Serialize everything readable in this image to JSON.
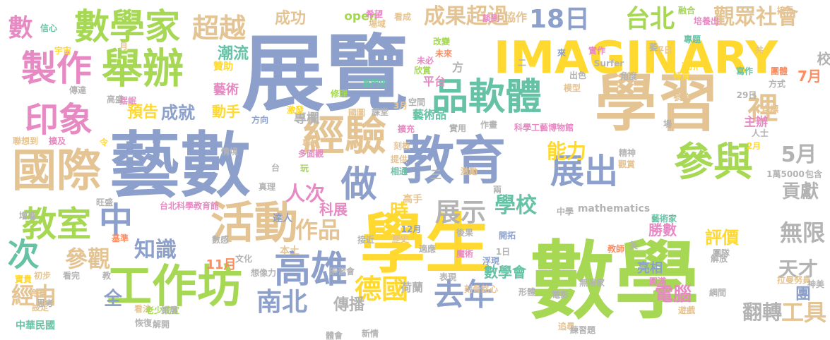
{
  "words": [
    {
      "text": "數學",
      "color": "#a6d854",
      "orient": "h"
    },
    {
      "text": "展覽",
      "color": "#8da0cb",
      "orient": "h"
    },
    {
      "text": "藝數",
      "color": "#8da0cb",
      "orient": "h"
    },
    {
      "text": "學生",
      "color": "#ffd92f",
      "orient": "h"
    },
    {
      "text": "學習",
      "color": "#e5c494",
      "orient": "h"
    },
    {
      "text": "IMAGINARY",
      "color": "#ffd92f",
      "orient": "h"
    },
    {
      "text": "教育",
      "color": "#8da0cb",
      "orient": "h"
    },
    {
      "text": "國際",
      "color": "#e5c494",
      "orient": "h"
    },
    {
      "text": "工作坊",
      "color": "#a6d854",
      "orient": "h"
    },
    {
      "text": "活動",
      "color": "#e5c494",
      "orient": "h"
    },
    {
      "text": "經驗",
      "color": "#e5c494",
      "orient": "h"
    },
    {
      "text": "舉辦",
      "color": "#a6d854",
      "orient": "h"
    },
    {
      "text": "數學家",
      "color": "#a6d854",
      "orient": "h"
    },
    {
      "text": "製作",
      "color": "#e78ac3",
      "orient": "h"
    },
    {
      "text": "印象",
      "color": "#e78ac3",
      "orient": "h"
    },
    {
      "text": "參與",
      "color": "#a6d854",
      "orient": "h"
    },
    {
      "text": "高雄",
      "color": "#8da0cb",
      "orient": "h"
    },
    {
      "text": "教室",
      "color": "#a6d854",
      "orient": "h"
    },
    {
      "text": "品軟體",
      "color": "#66c2a5",
      "orient": "h"
    },
    {
      "text": "展出",
      "color": "#8da0cb",
      "orient": "h"
    },
    {
      "text": "做",
      "color": "#8da0cb",
      "orient": "h"
    },
    {
      "text": "中",
      "color": "#8da0cb",
      "orient": "h"
    },
    {
      "text": "次",
      "color": "#66c2a5",
      "orient": "h"
    },
    {
      "text": "裡",
      "color": "#e5c494",
      "orient": "h"
    },
    {
      "text": "超越",
      "color": "#e5c494",
      "orient": "h"
    },
    {
      "text": "數",
      "color": "#e78ac3",
      "orient": "h"
    },
    {
      "text": "觀眾社會",
      "color": "#e5c494",
      "orient": "h"
    },
    {
      "text": "18日",
      "color": "#8da0cb",
      "orient": "h"
    },
    {
      "text": "台北",
      "color": "#a6d854",
      "orient": "h"
    },
    {
      "text": "成果超過",
      "color": "#e5c494",
      "orient": "h"
    },
    {
      "text": "去年",
      "color": "#8da0cb",
      "orient": "h"
    },
    {
      "text": "德國",
      "color": "#ffd92f",
      "orient": "h"
    },
    {
      "text": "南北",
      "color": "#8da0cb",
      "orient": "h"
    },
    {
      "text": "展示",
      "color": "#b3b3b3",
      "orient": "h"
    },
    {
      "text": "作品",
      "color": "#e5c494",
      "orient": "h"
    },
    {
      "text": "學校",
      "color": "#66c2a5",
      "orient": "h"
    },
    {
      "text": "能力",
      "color": "#ffd92f",
      "orient": "h"
    },
    {
      "text": "時",
      "color": "#ffd92f",
      "orient": "h"
    },
    {
      "text": "經由",
      "color": "#e5c494",
      "orient": "h"
    },
    {
      "text": "全",
      "color": "#8da0cb",
      "orient": "h"
    },
    {
      "text": "參觀",
      "color": "#e5c494",
      "orient": "h"
    },
    {
      "text": "知識",
      "color": "#8da0cb",
      "orient": "h"
    },
    {
      "text": "人次",
      "color": "#e78ac3",
      "orient": "h"
    },
    {
      "text": "5月",
      "color": "#b3b3b3",
      "orient": "h"
    },
    {
      "text": "無限",
      "color": "#b3b3b3",
      "orient": "h"
    },
    {
      "text": "天才",
      "color": "#b3b3b3",
      "orient": "h"
    },
    {
      "text": "團",
      "color": "#8da0cb",
      "orient": "h"
    },
    {
      "text": "工具",
      "color": "#e5c494",
      "orient": "h"
    },
    {
      "text": "翻轉",
      "color": "#b3b3b3",
      "orient": "h"
    },
    {
      "text": "電腦",
      "color": "#e78ac3",
      "orient": "h"
    },
    {
      "text": "貢獻",
      "color": "#b3b3b3",
      "orient": "h"
    },
    {
      "text": "評價",
      "color": "#ffd92f",
      "orient": "h"
    },
    {
      "text": "傳播",
      "color": "#b3b3b3",
      "orient": "h"
    },
    {
      "text": "成功",
      "color": "#e5c494",
      "orient": "h"
    },
    {
      "text": "潮流",
      "color": "#66c2a5",
      "orient": "h"
    },
    {
      "text": "動手",
      "color": "#ffd92f",
      "orient": "h"
    },
    {
      "text": "預告",
      "color": "#ffd92f",
      "orient": "h"
    },
    {
      "text": "成就",
      "color": "#8da0cb",
      "orient": "h"
    },
    {
      "text": "科展",
      "color": "#e78ac3",
      "orient": "h"
    },
    {
      "text": "7月",
      "color": "#fc8d62",
      "orient": "h"
    },
    {
      "text": "校",
      "color": "#b3b3b3",
      "orient": "h"
    },
    {
      "text": "數學會",
      "color": "#66c2a5",
      "orient": "h"
    },
    {
      "text": "11月",
      "color": "#fc8d62",
      "orient": "h"
    },
    {
      "text": "勝數",
      "color": "#e78ac3",
      "orient": "h"
    },
    {
      "text": "藝術品",
      "color": "#66c2a5",
      "orient": "h"
    },
    {
      "text": "專欄",
      "color": "#b3b3b3",
      "orient": "h"
    },
    {
      "text": "藝術",
      "color": "#e78ac3",
      "orient": "h"
    },
    {
      "text": "協作",
      "color": "#e5c494",
      "orient": "h"
    },
    {
      "text": "open",
      "color": "#a6d854",
      "orient": "h"
    },
    {
      "text": "mathematics",
      "color": "#b3b3b3",
      "orient": "h"
    },
    {
      "text": "中華民國",
      "color": "#66c2a5",
      "orient": "h"
    },
    {
      "text": "荷蘭",
      "color": "#b3b3b3",
      "orient": "h"
    },
    {
      "text": "亮相",
      "color": "#8da0cb",
      "orient": "h"
    },
    {
      "text": "主辦",
      "color": "#e78ac3",
      "orient": "h"
    },
    {
      "text": "平台",
      "color": "#e78ac3",
      "orient": "h"
    },
    {
      "text": "高手",
      "color": "#e5c494",
      "orient": "h"
    },
    {
      "text": "達人",
      "color": "#8da0cb",
      "orient": "h"
    },
    {
      "text": "本土",
      "color": "#e5c494",
      "orient": "h"
    },
    {
      "text": "贊助",
      "color": "#ffd92f",
      "orient": "h"
    },
    {
      "text": "三",
      "color": "#b3b3b3",
      "orient": "h"
    },
    {
      "text": "方",
      "color": "#b3b3b3",
      "orient": "h"
    },
    {
      "text": "台",
      "color": "#b3b3b3",
      "orient": "h"
    },
    {
      "text": "玩",
      "color": "#a6d854",
      "orient": "h"
    },
    {
      "text": "科學工藝博物館",
      "color": "#e78ac3",
      "orient": "h"
    },
    {
      "text": "台北科學教育館",
      "color": "#e78ac3",
      "orient": "h"
    },
    {
      "text": "希望",
      "color": "#e78ac3",
      "orient": "h"
    },
    {
      "text": "場域",
      "color": "#e5c494",
      "orient": "h"
    },
    {
      "text": "看成",
      "color": "#e5c494",
      "orient": "h"
    },
    {
      "text": "談到",
      "color": "#e78ac3",
      "orient": "h"
    },
    {
      "text": "融合",
      "color": "#a6d854",
      "orient": "h"
    },
    {
      "text": "培養出",
      "color": "#e78ac3",
      "orient": "h"
    },
    {
      "text": "專題",
      "color": "#66c2a5",
      "orient": "h"
    },
    {
      "text": "信心",
      "color": "#66c2a5",
      "orient": "h"
    },
    {
      "text": "宇宙",
      "color": "#ffd92f",
      "orient": "h"
    },
    {
      "text": "月",
      "color": "#e5c494",
      "orient": "h"
    },
    {
      "text": "改變",
      "color": "#a6d854",
      "orient": "h"
    },
    {
      "text": "未來",
      "color": "#fc8d62",
      "orient": "h"
    },
    {
      "text": "來",
      "color": "#8da0cb",
      "orient": "h"
    },
    {
      "text": "未必",
      "color": "#e78ac3",
      "orient": "h"
    },
    {
      "text": "欣賞",
      "color": "#a6d854",
      "orient": "h"
    },
    {
      "text": "平日",
      "color": "#e5c494",
      "orient": "h"
    },
    {
      "text": "理所",
      "color": "#ffd92f",
      "orient": "h"
    },
    {
      "text": "實作",
      "color": "#e78ac3",
      "orient": "h"
    },
    {
      "text": "Surfer",
      "color": "#b3b3b3",
      "orient": "h"
    },
    {
      "text": "出色",
      "color": "#b3b3b3",
      "orient": "h"
    },
    {
      "text": "模型",
      "color": "#e5c494",
      "orient": "h"
    },
    {
      "text": "角度",
      "color": "#b3b3b3",
      "orient": "h"
    },
    {
      "text": "特質",
      "color": "#ffd92f",
      "orient": "h"
    },
    {
      "text": "寫作",
      "color": "#66c2a5",
      "orient": "h"
    },
    {
      "text": "團體",
      "color": "#fc8d62",
      "orient": "h"
    },
    {
      "text": "方式",
      "color": "#b3b3b3",
      "orient": "h"
    },
    {
      "text": "29日",
      "color": "#b3b3b3",
      "orient": "h"
    },
    {
      "text": "自標",
      "color": "#e5c494",
      "orient": "h"
    },
    {
      "text": "參訪",
      "color": "#e5c494",
      "orient": "h"
    },
    {
      "text": "傳達",
      "color": "#b3b3b3",
      "orient": "h"
    },
    {
      "text": "高盛",
      "color": "#b3b3b3",
      "orient": "h"
    },
    {
      "text": "揺岷",
      "color": "#e78ac3",
      "orient": "h"
    },
    {
      "text": "富門史",
      "color": "#66c2a5",
      "orient": "h"
    },
    {
      "text": "修理",
      "color": "#a6d854",
      "orient": "h"
    },
    {
      "text": "3月",
      "color": "#e5c494",
      "orient": "h"
    },
    {
      "text": "空間",
      "color": "#b3b3b3",
      "orient": "h"
    },
    {
      "text": "國圖",
      "color": "#e5c494",
      "orient": "h"
    },
    {
      "text": "課堂",
      "color": "#b3b3b3",
      "orient": "h"
    },
    {
      "text": "擴充",
      "color": "#e78ac3",
      "orient": "h"
    },
    {
      "text": "激發",
      "color": "#ffd92f",
      "orient": "h"
    },
    {
      "text": "實用",
      "color": "#b3b3b3",
      "orient": "h"
    },
    {
      "text": "作畫",
      "color": "#b3b3b3",
      "orient": "h"
    },
    {
      "text": "場",
      "color": "#b3b3b3",
      "orient": "h"
    },
    {
      "text": "人士",
      "color": "#b3b3b3",
      "orient": "h"
    },
    {
      "text": "2月",
      "color": "#ffd92f",
      "orient": "h"
    },
    {
      "text": "聯想到",
      "color": "#e5c494",
      "orient": "h"
    },
    {
      "text": "擴及",
      "color": "#e78ac3",
      "orient": "h"
    },
    {
      "text": "令",
      "color": "#ffd92f",
      "orient": "h"
    },
    {
      "text": "情境",
      "color": "#b3b3b3",
      "orient": "h"
    },
    {
      "text": "方向",
      "color": "#8da0cb",
      "orient": "h"
    },
    {
      "text": "專技",
      "color": "#e5c494",
      "orient": "h"
    },
    {
      "text": "多面觀",
      "color": "#e78ac3",
      "orient": "h"
    },
    {
      "text": "刻板",
      "color": "#e5c494",
      "orient": "h"
    },
    {
      "text": "相通",
      "color": "#66c2a5",
      "orient": "h"
    },
    {
      "text": "提供",
      "color": "#e5c494",
      "orient": "h"
    },
    {
      "text": "激勵",
      "color": "#e5c494",
      "orient": "h"
    },
    {
      "text": "精神",
      "color": "#b3b3b3",
      "orient": "h"
    },
    {
      "text": "觀賞",
      "color": "#e5c494",
      "orient": "h"
    },
    {
      "text": "1萬5000",
      "color": "#b3b3b3",
      "orient": "h"
    },
    {
      "text": "包含",
      "color": "#b3b3b3",
      "orient": "h"
    },
    {
      "text": "真理",
      "color": "#b3b3b3",
      "orient": "h"
    },
    {
      "text": "接近",
      "color": "#b3b3b3",
      "orient": "h"
    },
    {
      "text": "兩",
      "color": "#b3b3b3",
      "orient": "h"
    },
    {
      "text": "旺盛",
      "color": "#b3b3b3",
      "orient": "h"
    },
    {
      "text": "增進",
      "color": "#b3b3b3",
      "orient": "h"
    },
    {
      "text": "基準",
      "color": "#fc8d62",
      "orient": "h"
    },
    {
      "text": "數感",
      "color": "#b3b3b3",
      "orient": "h"
    },
    {
      "text": "12月",
      "color": "#8da0cb",
      "orient": "h"
    },
    {
      "text": "歷史",
      "color": "#e5c494",
      "orient": "h"
    },
    {
      "text": "後果",
      "color": "#b3b3b3",
      "orient": "h"
    },
    {
      "text": "適應",
      "color": "#b3b3b3",
      "orient": "h"
    },
    {
      "text": "中學",
      "color": "#b3b3b3",
      "orient": "h"
    },
    {
      "text": "藝術家",
      "color": "#66c2a5",
      "orient": "h"
    },
    {
      "text": "團隊",
      "color": "#b3b3b3",
      "orient": "h"
    },
    {
      "text": "解放",
      "color": "#b3b3b3",
      "orient": "h"
    },
    {
      "text": "美",
      "color": "#b3b3b3",
      "orient": "h"
    },
    {
      "text": "教師",
      "color": "#fc8d62",
      "orient": "h"
    },
    {
      "text": "文化",
      "color": "#b3b3b3",
      "orient": "h"
    },
    {
      "text": "想像力",
      "color": "#b3b3b3",
      "orient": "h"
    },
    {
      "text": "魔術",
      "color": "#e78ac3",
      "orient": "h"
    },
    {
      "text": "開拓",
      "color": "#8da0cb",
      "orient": "h"
    },
    {
      "text": "1日",
      "color": "#b3b3b3",
      "orient": "h"
    },
    {
      "text": "浮現",
      "color": "#8da0cb",
      "orient": "h"
    },
    {
      "text": "初步",
      "color": "#e5c494",
      "orient": "h"
    },
    {
      "text": "看完",
      "color": "#b3b3b3",
      "orient": "h"
    },
    {
      "text": "教",
      "color": "#b3b3b3",
      "orient": "h"
    },
    {
      "text": "研習會",
      "color": "#b3b3b3",
      "orient": "h"
    },
    {
      "text": "表現",
      "color": "#b3b3b3",
      "orient": "h"
    },
    {
      "text": "刻骨銘心",
      "color": "#e5c494",
      "orient": "h"
    },
    {
      "text": "形體",
      "color": "#b3b3b3",
      "orient": "h"
    },
    {
      "text": "電影",
      "color": "#b3b3b3",
      "orient": "h"
    },
    {
      "text": "無限家",
      "color": "#b3b3b3",
      "orient": "h"
    },
    {
      "text": "圓滿",
      "color": "#e78ac3",
      "orient": "h"
    },
    {
      "text": "網間",
      "color": "#b3b3b3",
      "orient": "h"
    },
    {
      "text": "拉曼努員",
      "color": "#e5c494",
      "orient": "h"
    },
    {
      "text": "神美",
      "color": "#b3b3b3",
      "orient": "h"
    },
    {
      "text": "竟賽",
      "color": "#e5c494",
      "orient": "h"
    },
    {
      "text": "設定",
      "color": "#e5c494",
      "orient": "h"
    },
    {
      "text": "思考",
      "color": "#b3b3b3",
      "orient": "h"
    },
    {
      "text": "看法",
      "color": "#e5c494",
      "orient": "h"
    },
    {
      "text": "老少咸宜",
      "color": "#a6d854",
      "orient": "h"
    },
    {
      "text": "解開",
      "color": "#b3b3b3",
      "orient": "h"
    },
    {
      "text": "恢復",
      "color": "#b3b3b3",
      "orient": "h"
    },
    {
      "text": "策展",
      "color": "#b3b3b3",
      "orient": "h"
    },
    {
      "text": "體會",
      "color": "#b3b3b3",
      "orient": "h"
    },
    {
      "text": "新情",
      "color": "#b3b3b3",
      "orient": "h"
    },
    {
      "text": "追尋",
      "color": "#e5c494",
      "orient": "h"
    },
    {
      "text": "練習題",
      "color": "#b3b3b3",
      "orient": "h"
    },
    {
      "text": "遊戲",
      "color": "#e5c494",
      "orient": "h"
    },
    {
      "text": "寶貴",
      "color": "#ffd92f",
      "orient": "h"
    },
    {
      "text": "共",
      "color": "#e5c494",
      "orient": "h"
    },
    {
      "text": "接長",
      "color": "#e5c494",
      "orient": "h"
    },
    {
      "text": "萎",
      "color": "#b3b3b3",
      "orient": "h"
    },
    {
      "text": "二",
      "color": "#b3b3b3",
      "orient": "h"
    }
  ]
}
